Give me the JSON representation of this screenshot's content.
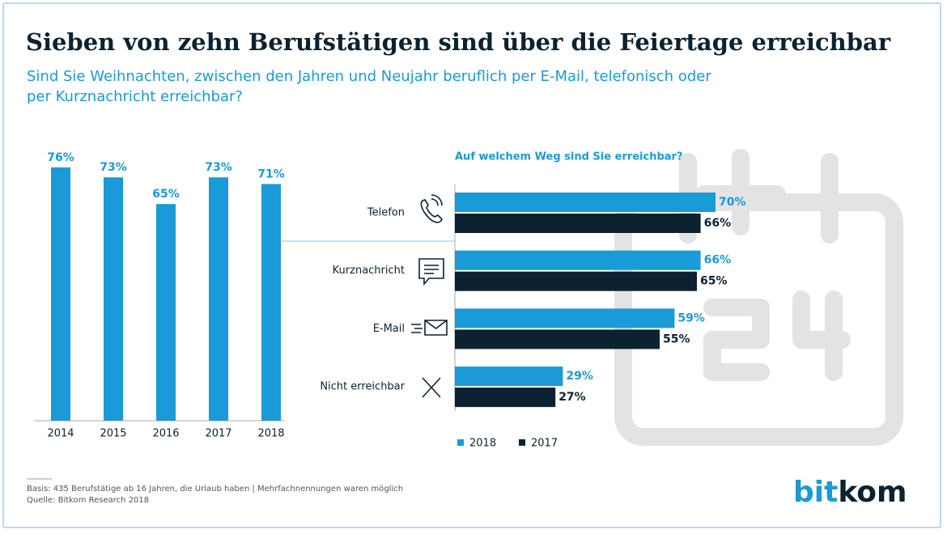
{
  "title": "Sieben von zehn Berufstätigen sind über die Feiertage erreichbar",
  "subtitle": [
    "Sind Sie Weihnachten, zwischen den Jahren und Neujahr beruflich per E-Mail, telefonisch oder",
    "per Kurznachricht erreichbar?"
  ],
  "notes": [
    "Basis: 435 Berufstätige ab 16 Jahren, die Urlaub haben | Mehrfachnennungen waren möglich",
    "Quelle: Bitkom Research 2018"
  ],
  "logo": [
    "bit",
    "kom"
  ],
  "chart_data": [
    {
      "type": "bar",
      "categories": [
        "2014",
        "2015",
        "2016",
        "2017",
        "2018"
      ],
      "values": [
        76,
        73,
        65,
        73,
        71
      ],
      "value_labels": [
        "76%",
        "73%",
        "65%",
        "73%",
        "71%"
      ],
      "color": "#1a9ad6"
    },
    {
      "type": "hbar",
      "title": "Auf welchem Weg sind Sie erreichbar?",
      "categories": [
        "Telefon",
        "Kurznachricht",
        "E-Mail",
        "Nicht erreichbar"
      ],
      "series": [
        {
          "name": "2018",
          "color": "#1a9ad6",
          "values": [
            70,
            66,
            59,
            29
          ],
          "value_labels": [
            "70%",
            "66%",
            "59%",
            "29%"
          ]
        },
        {
          "name": "2017",
          "color": "#0c2230",
          "values": [
            66,
            65,
            55,
            27
          ],
          "value_labels": [
            "66%",
            "65%",
            "55%",
            "27%"
          ]
        }
      ],
      "legend": "bottom"
    }
  ]
}
